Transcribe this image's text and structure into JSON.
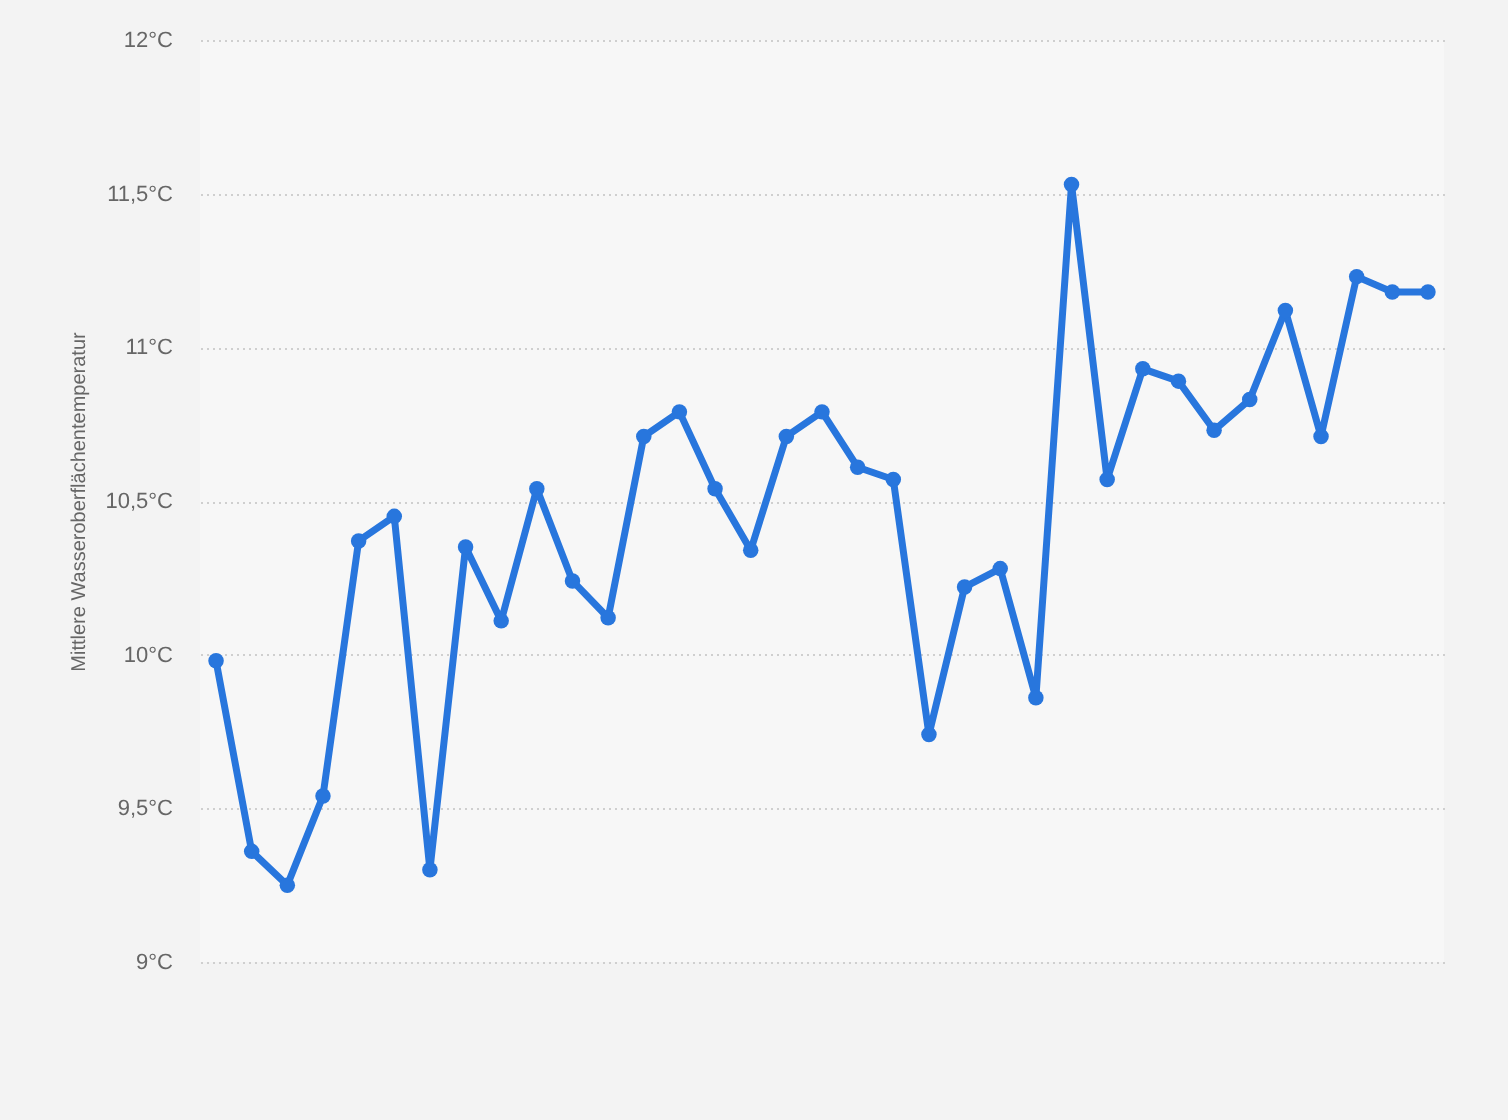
{
  "chart_data": {
    "type": "line",
    "ylabel": "Mittlere Wasseroberflächentemperatur",
    "categories": [
      null,
      null,
      null,
      null,
      null,
      null,
      null,
      null,
      null,
      null,
      null,
      null,
      null,
      null,
      null,
      null,
      null,
      null,
      null,
      null,
      null,
      null,
      null,
      null,
      null,
      null,
      null,
      null,
      null,
      null,
      null,
      null,
      null,
      null,
      null
    ],
    "series": [
      {
        "color": "#2876dd",
        "values": [
          9.98,
          9.36,
          9.25,
          9.54,
          10.37,
          10.45,
          9.3,
          10.35,
          10.11,
          10.54,
          10.24,
          10.12,
          10.71,
          10.79,
          10.54,
          10.34,
          10.71,
          10.79,
          10.61,
          10.57,
          9.74,
          10.22,
          10.28,
          9.86,
          11.53,
          10.57,
          10.93,
          10.89,
          10.73,
          10.83,
          11.12,
          10.71,
          11.23,
          11.18,
          11.18
        ]
      }
    ],
    "ylim": [
      9,
      12
    ],
    "yticks": [
      {
        "value": 9,
        "label": "9°C"
      },
      {
        "value": 9.5,
        "label": "9,5°C"
      },
      {
        "value": 10,
        "label": "10°C"
      },
      {
        "value": 10.5,
        "label": "10,5°C"
      },
      {
        "value": 11,
        "label": "11°C"
      },
      {
        "value": 11.5,
        "label": "11,5°C"
      },
      {
        "value": 12,
        "label": "12°C"
      }
    ],
    "grid": "y",
    "marker": "circle",
    "line_style": "solid",
    "tick_labels": "y"
  }
}
